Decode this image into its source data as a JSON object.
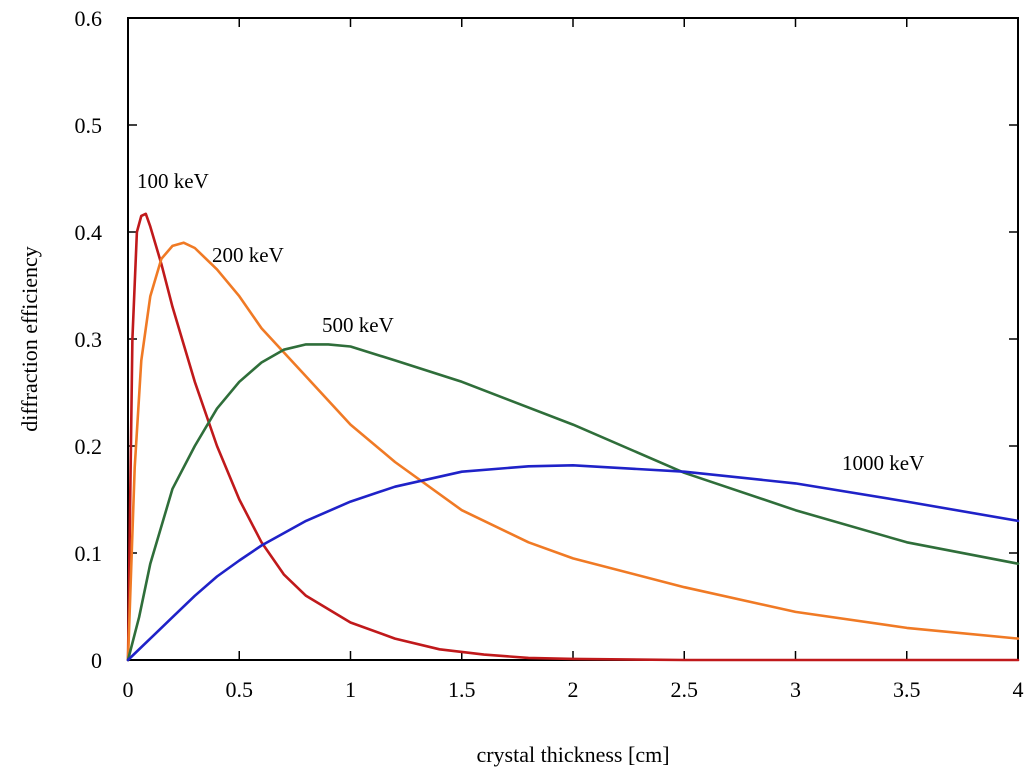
{
  "chart_data": {
    "type": "line",
    "xlabel": "crystal thickness [cm]",
    "ylabel": "diffraction  efficiency",
    "xlim": [
      0,
      4
    ],
    "ylim": [
      0,
      0.6
    ],
    "x_ticks": [
      "0",
      "0.5",
      "1",
      "1.5",
      "2",
      "2.5",
      "3",
      "3.5",
      "4"
    ],
    "y_ticks": [
      "0",
      "0.1",
      "0.2",
      "0.3",
      "0.4",
      "0.5",
      "0.6"
    ],
    "grid": false,
    "series": [
      {
        "name": "100 keV",
        "color": "#c0191b",
        "x": [
          0,
          0.02,
          0.04,
          0.06,
          0.08,
          0.1,
          0.15,
          0.2,
          0.3,
          0.4,
          0.5,
          0.6,
          0.7,
          0.8,
          1.0,
          1.2,
          1.4,
          1.6,
          1.8,
          2.0,
          2.5,
          3.0,
          3.5,
          4.0
        ],
        "y": [
          0,
          0.3,
          0.4,
          0.415,
          0.417,
          0.405,
          0.37,
          0.33,
          0.26,
          0.2,
          0.15,
          0.11,
          0.08,
          0.06,
          0.035,
          0.02,
          0.01,
          0.005,
          0.002,
          0.001,
          0.0,
          0.0,
          0.0,
          0.0
        ]
      },
      {
        "name": "200 keV",
        "color": "#f07a25",
        "x": [
          0,
          0.03,
          0.06,
          0.1,
          0.15,
          0.2,
          0.25,
          0.3,
          0.4,
          0.5,
          0.6,
          0.8,
          1.0,
          1.2,
          1.5,
          1.8,
          2.0,
          2.5,
          3.0,
          3.5,
          4.0
        ],
        "y": [
          0,
          0.18,
          0.28,
          0.34,
          0.375,
          0.387,
          0.39,
          0.385,
          0.365,
          0.34,
          0.31,
          0.265,
          0.22,
          0.185,
          0.14,
          0.11,
          0.095,
          0.068,
          0.045,
          0.03,
          0.02
        ]
      },
      {
        "name": "500 keV",
        "color": "#2f6e3a",
        "x": [
          0,
          0.05,
          0.1,
          0.2,
          0.3,
          0.4,
          0.5,
          0.6,
          0.7,
          0.8,
          0.9,
          1.0,
          1.2,
          1.5,
          2.0,
          2.5,
          3.0,
          3.5,
          4.0
        ],
        "y": [
          0,
          0.04,
          0.09,
          0.16,
          0.2,
          0.235,
          0.26,
          0.278,
          0.29,
          0.295,
          0.295,
          0.293,
          0.28,
          0.26,
          0.22,
          0.175,
          0.14,
          0.11,
          0.09
        ]
      },
      {
        "name": "1000 keV",
        "color": "#1f22c8",
        "x": [
          0,
          0.1,
          0.2,
          0.3,
          0.4,
          0.5,
          0.6,
          0.8,
          1.0,
          1.2,
          1.5,
          1.8,
          2.0,
          2.5,
          3.0,
          3.5,
          4.0
        ],
        "y": [
          0,
          0.02,
          0.04,
          0.06,
          0.078,
          0.093,
          0.107,
          0.13,
          0.148,
          0.162,
          0.176,
          0.181,
          0.182,
          0.176,
          0.165,
          0.148,
          0.13
        ]
      }
    ]
  }
}
